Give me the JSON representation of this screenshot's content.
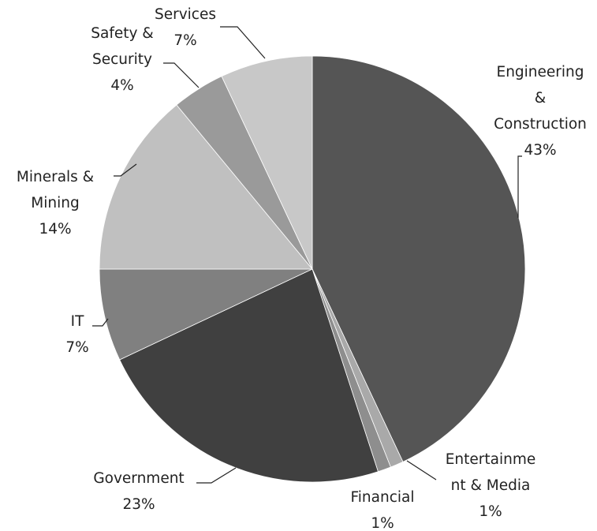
{
  "chart_data": {
    "type": "pie",
    "title": "",
    "legend": "none",
    "slices": [
      {
        "lines": [
          "Engineering",
          "&",
          "Construction"
        ],
        "value": 43,
        "value_label": "43%",
        "color": "#555555"
      },
      {
        "lines": [
          "Entertainme",
          "nt & Media"
        ],
        "value": 1,
        "value_label": "1%",
        "color": "#a9a9a9"
      },
      {
        "lines": [
          "Financial"
        ],
        "value": 1,
        "value_label": "1%",
        "color": "#8e8e8e"
      },
      {
        "lines": [
          "Government"
        ],
        "value": 23,
        "value_label": "23%",
        "color": "#404040"
      },
      {
        "lines": [
          "IT"
        ],
        "value": 7,
        "value_label": "7%",
        "color": "#808080"
      },
      {
        "lines": [
          "Minerals &",
          "Mining"
        ],
        "value": 14,
        "value_label": "14%",
        "color": "#c0c0c0"
      },
      {
        "lines": [
          "Safety &",
          "Security"
        ],
        "value": 4,
        "value_label": "4%",
        "color": "#9a9a9a"
      },
      {
        "lines": [
          "Services"
        ],
        "value": 7,
        "value_label": "7%",
        "color": "#c8c8c8"
      }
    ]
  }
}
